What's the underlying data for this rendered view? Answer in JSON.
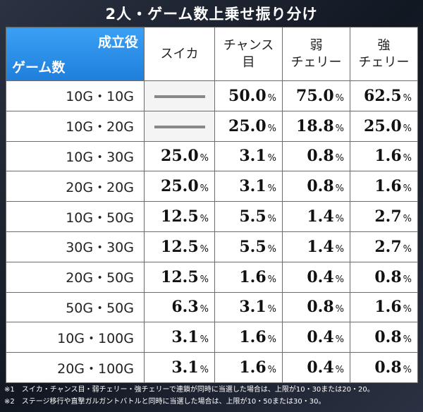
{
  "title": "2人・ゲーム数上乗せ振り分け",
  "header": {
    "corner_top": "成立役",
    "corner_bottom": "ゲーム数",
    "columns": [
      "スイカ",
      "チャンス\n目",
      "弱\nチェリー",
      "強\nチェリー"
    ]
  },
  "percent_unit": "%",
  "rows": [
    {
      "label": "10G・10G",
      "values": [
        null,
        "50.0",
        "75.0",
        "62.5"
      ]
    },
    {
      "label": "10G・20G",
      "values": [
        null,
        "25.0",
        "18.8",
        "25.0"
      ]
    },
    {
      "label": "10G・30G",
      "values": [
        "25.0",
        "3.1",
        "0.8",
        "1.6"
      ]
    },
    {
      "label": "20G・20G",
      "values": [
        "25.0",
        "3.1",
        "0.8",
        "1.6"
      ]
    },
    {
      "label": "10G・50G",
      "values": [
        "12.5",
        "5.5",
        "1.4",
        "2.7"
      ]
    },
    {
      "label": "30G・30G",
      "values": [
        "12.5",
        "5.5",
        "1.4",
        "2.7"
      ]
    },
    {
      "label": "20G・50G",
      "values": [
        "12.5",
        "1.6",
        "0.4",
        "0.8"
      ]
    },
    {
      "label": "50G・50G",
      "values": [
        "6.3",
        "3.1",
        "0.8",
        "1.6"
      ]
    },
    {
      "label": "10G・100G",
      "values": [
        "3.1",
        "1.6",
        "0.4",
        "0.8"
      ]
    },
    {
      "label": "20G・100G",
      "values": [
        "3.1",
        "1.6",
        "0.4",
        "0.8"
      ]
    }
  ],
  "notes": [
    "※1　スイカ・チャンス目・弱チェリー・強チェリーで連鎖が同時に当選した場合は、上限が10・30または20・20。",
    "※2　ステージ移行や直撃ガルガントバトルと同時に当選した場合は、上限が10・50または30・30。"
  ]
}
